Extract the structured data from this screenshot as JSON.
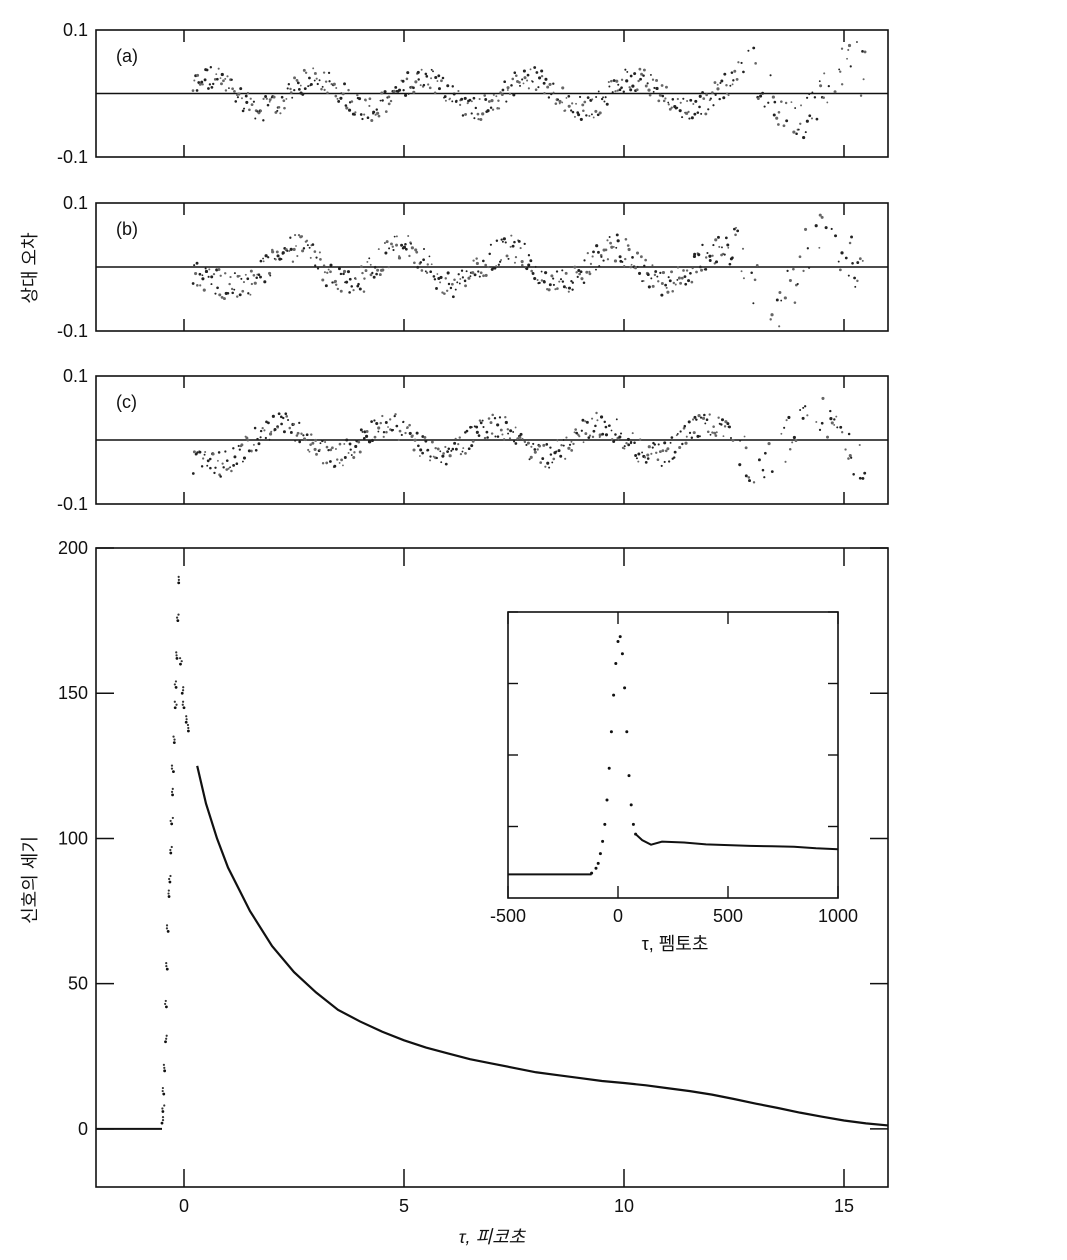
{
  "figure": {
    "ylabel_residuals": "상대 오차",
    "ylabel_main": "신호의 세기",
    "xlabel_main": "τ, 피코초",
    "xlabel_inset": "τ, 펨토초"
  },
  "chart_data": [
    {
      "id": "residual-a",
      "type": "scatter",
      "panel_label": "(a)",
      "ylabel": "",
      "xlim": [
        -2,
        16
      ],
      "ylim": [
        -0.1,
        0.1
      ],
      "y_tick_labels": [
        "0.1",
        "-0.1"
      ],
      "x_ticks": [
        0,
        5,
        10,
        15
      ],
      "reference_line": 0,
      "x_range": [
        0.2,
        15.5
      ],
      "amplitude": 0.03,
      "late_amplitude": 0.06,
      "late_start": 12.5,
      "series": [
        {
          "values_description_only": "residual scatter"
        }
      ]
    },
    {
      "id": "residual-b",
      "type": "scatter",
      "panel_label": "(b)",
      "ylabel": "",
      "xlim": [
        -2,
        16
      ],
      "ylim": [
        -0.1,
        0.1
      ],
      "y_tick_labels": [
        "0.1",
        "-0.1"
      ],
      "x_ticks": [
        0,
        5,
        10,
        15
      ],
      "reference_line": 0,
      "x_range": [
        0.2,
        15.5
      ],
      "amplitude": 0.035,
      "late_amplitude": 0.07,
      "late_start": 12.5
    },
    {
      "id": "residual-c",
      "type": "scatter",
      "panel_label": "(c)",
      "ylabel": "",
      "xlim": [
        -2,
        16
      ],
      "ylim": [
        -0.1,
        0.1
      ],
      "y_tick_labels": [
        "0.1",
        "-0.1"
      ],
      "x_ticks": [
        0,
        5,
        10,
        15
      ],
      "reference_line": 0,
      "x_range": [
        0.2,
        15.5
      ],
      "amplitude": 0.03,
      "late_amplitude": 0.05,
      "late_start": 12.5
    },
    {
      "id": "main",
      "type": "line",
      "xlim": [
        -2,
        16
      ],
      "ylim": [
        -20,
        200
      ],
      "y_ticks": [
        0,
        50,
        100,
        150,
        200
      ],
      "x_ticks": [
        0,
        5,
        10,
        15
      ],
      "baseline": {
        "x": [
          -2,
          -0.5
        ],
        "y": [
          0,
          0
        ]
      },
      "rise_points": [
        [
          -0.5,
          2
        ],
        [
          -0.48,
          6
        ],
        [
          -0.46,
          12
        ],
        [
          -0.44,
          20
        ],
        [
          -0.42,
          30
        ],
        [
          -0.4,
          42
        ],
        [
          -0.38,
          55
        ],
        [
          -0.36,
          68
        ],
        [
          -0.34,
          80
        ],
        [
          -0.32,
          85
        ],
        [
          -0.3,
          95
        ],
        [
          -0.28,
          105
        ],
        [
          -0.26,
          115
        ],
        [
          -0.24,
          123
        ],
        [
          -0.22,
          133
        ],
        [
          -0.2,
          145
        ],
        [
          -0.18,
          152
        ],
        [
          -0.16,
          162
        ],
        [
          -0.14,
          175
        ],
        [
          -0.12,
          188
        ],
        [
          -0.08,
          160
        ],
        [
          -0.04,
          150
        ],
        [
          0,
          145
        ],
        [
          0.05,
          140
        ],
        [
          0.1,
          137
        ]
      ],
      "decay": [
        [
          0.3,
          125
        ],
        [
          0.5,
          112
        ],
        [
          0.75,
          100
        ],
        [
          1,
          90
        ],
        [
          1.5,
          75
        ],
        [
          2,
          63
        ],
        [
          2.5,
          54
        ],
        [
          3,
          47
        ],
        [
          3.5,
          41
        ],
        [
          4,
          37
        ],
        [
          4.5,
          33.5
        ],
        [
          5,
          30.5
        ],
        [
          5.5,
          28
        ],
        [
          6,
          26
        ],
        [
          6.5,
          24
        ],
        [
          7,
          22.5
        ],
        [
          7.5,
          21
        ],
        [
          8,
          19.5
        ],
        [
          8.5,
          18.5
        ],
        [
          9,
          17.5
        ],
        [
          9.5,
          16.5
        ],
        [
          10,
          15.8
        ],
        [
          10.5,
          15
        ],
        [
          11,
          14
        ],
        [
          11.5,
          13
        ],
        [
          12,
          11.8
        ],
        [
          12.5,
          10.3
        ],
        [
          13,
          8.7
        ],
        [
          13.5,
          7.2
        ],
        [
          14,
          5.6
        ],
        [
          14.5,
          4.2
        ],
        [
          15,
          2.9
        ],
        [
          15.5,
          1.9
        ],
        [
          16,
          1.2
        ]
      ]
    },
    {
      "id": "inset",
      "type": "line",
      "xlim": [
        -500,
        1000
      ],
      "ylim": [
        0,
        1.05
      ],
      "x_ticks": [
        -500,
        0,
        500,
        1000
      ],
      "peak_points": [
        [
          -120,
          0.02
        ],
        [
          -100,
          0.04
        ],
        [
          -90,
          0.06
        ],
        [
          -80,
          0.1
        ],
        [
          -70,
          0.15
        ],
        [
          -60,
          0.22
        ],
        [
          -50,
          0.32
        ],
        [
          -40,
          0.45
        ],
        [
          -30,
          0.6
        ],
        [
          -20,
          0.75
        ],
        [
          -10,
          0.88
        ],
        [
          0,
          0.97
        ],
        [
          10,
          0.99
        ],
        [
          20,
          0.92
        ],
        [
          30,
          0.78
        ],
        [
          40,
          0.6
        ],
        [
          50,
          0.42
        ],
        [
          60,
          0.3
        ],
        [
          70,
          0.22
        ],
        [
          80,
          0.18
        ]
      ],
      "baseline": {
        "x": [
          -500,
          -120
        ],
        "y": [
          0.015,
          0.015
        ]
      },
      "tail": [
        [
          80,
          0.18
        ],
        [
          110,
          0.15
        ],
        [
          150,
          0.14
        ],
        [
          200,
          0.145
        ],
        [
          300,
          0.14
        ],
        [
          400,
          0.138
        ],
        [
          500,
          0.135
        ],
        [
          600,
          0.132
        ],
        [
          700,
          0.13
        ],
        [
          800,
          0.128
        ],
        [
          900,
          0.122
        ],
        [
          1000,
          0.118
        ]
      ]
    }
  ]
}
